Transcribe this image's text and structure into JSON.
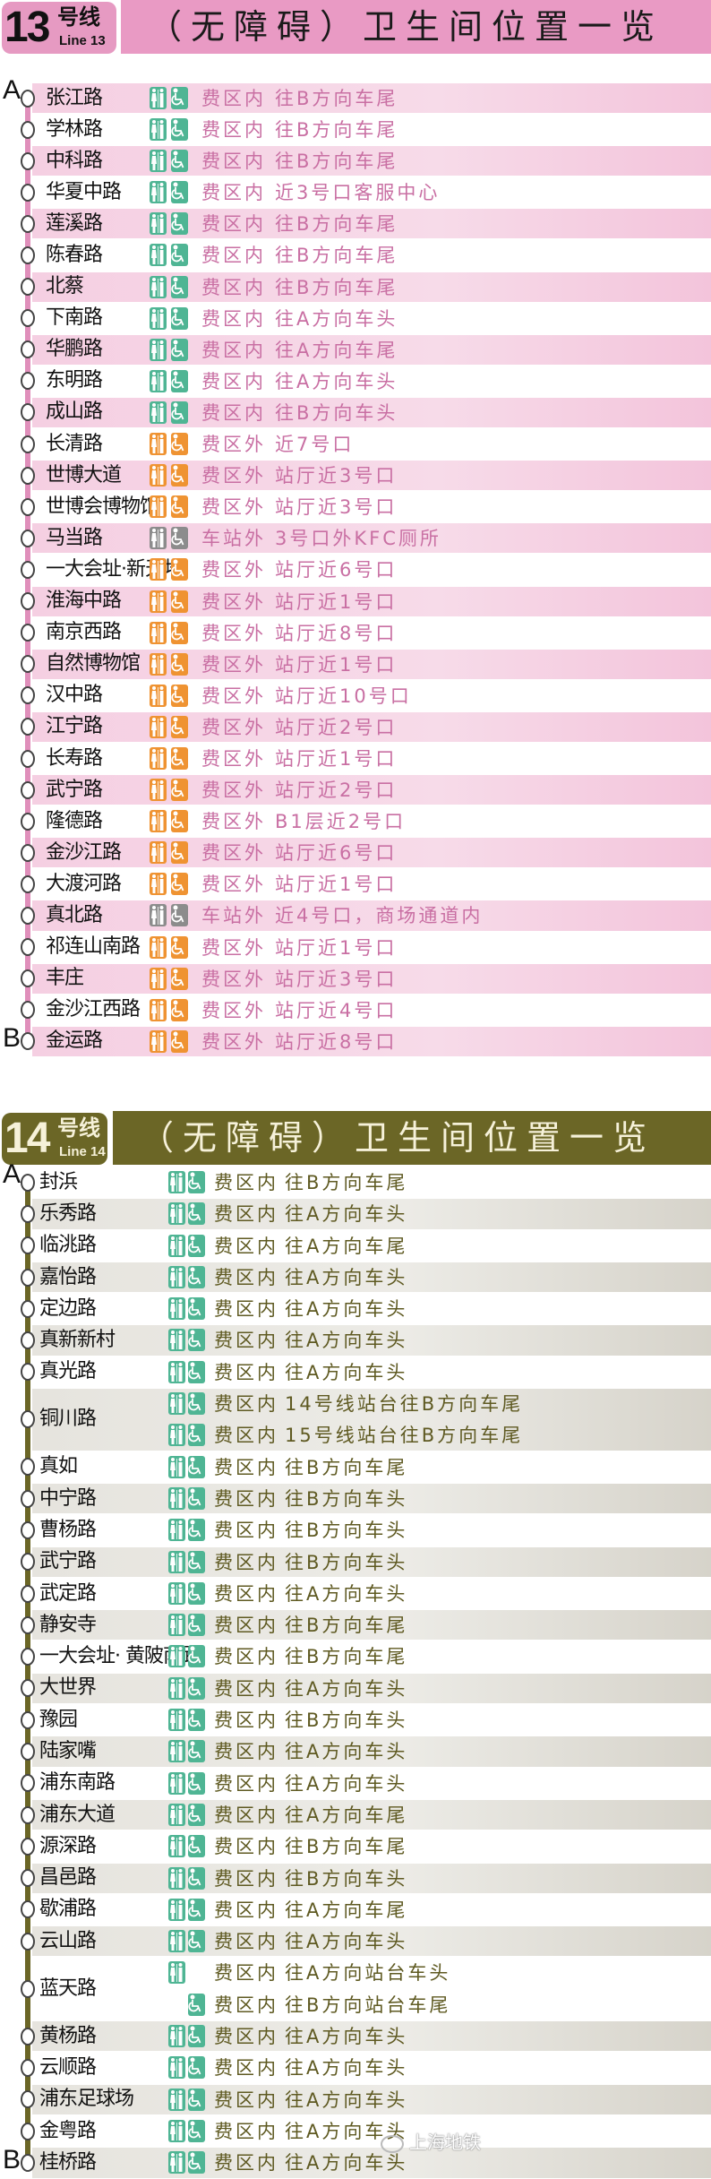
{
  "colors": {
    "in": "#4fb594",
    "out": "#ef9332",
    "station": "#8c8c8c"
  },
  "lines": [
    {
      "number": "13",
      "suffix": "号线",
      "en": "Line 13",
      "title": "（无障碍）卫生间位置一览",
      "start": "A",
      "end": "B",
      "line_color": "#e08fbb",
      "title_color": "#e99ac4",
      "title_text_color": "#1a1a1a",
      "text_color": "#c96fa3",
      "row_color": "#f4c8de",
      "stations": [
        {
          "name": "张江路",
          "entries": [
            {
              "status": "in",
              "zone": "费区内",
              "location": "往B方向车尾"
            }
          ]
        },
        {
          "name": "学林路",
          "entries": [
            {
              "status": "in",
              "zone": "费区内",
              "location": "往B方向车尾"
            }
          ]
        },
        {
          "name": "中科路",
          "entries": [
            {
              "status": "in",
              "zone": "费区内",
              "location": "往B方向车尾"
            }
          ]
        },
        {
          "name": "华夏中路",
          "entries": [
            {
              "status": "in",
              "zone": "费区内",
              "location": "近3号口客服中心"
            }
          ]
        },
        {
          "name": "莲溪路",
          "entries": [
            {
              "status": "in",
              "zone": "费区内",
              "location": "往B方向车尾"
            }
          ]
        },
        {
          "name": "陈春路",
          "entries": [
            {
              "status": "in",
              "zone": "费区内",
              "location": "往B方向车尾"
            }
          ]
        },
        {
          "name": "北蔡",
          "entries": [
            {
              "status": "in",
              "zone": "费区内",
              "location": "往B方向车尾"
            }
          ]
        },
        {
          "name": "下南路",
          "entries": [
            {
              "status": "in",
              "zone": "费区内",
              "location": "往A方向车头"
            }
          ]
        },
        {
          "name": "华鹏路",
          "entries": [
            {
              "status": "in",
              "zone": "费区内",
              "location": "往A方向车尾"
            }
          ]
        },
        {
          "name": "东明路",
          "entries": [
            {
              "status": "in",
              "zone": "费区内",
              "location": "往A方向车头"
            }
          ]
        },
        {
          "name": "成山路",
          "entries": [
            {
              "status": "in",
              "zone": "费区内",
              "location": "往B方向车头"
            }
          ]
        },
        {
          "name": "长清路",
          "entries": [
            {
              "status": "out",
              "zone": "费区外",
              "location": "近7号口"
            }
          ]
        },
        {
          "name": "世博大道",
          "entries": [
            {
              "status": "out",
              "zone": "费区外",
              "location": "站厅近3号口"
            }
          ]
        },
        {
          "name": "世博会博物馆",
          "entries": [
            {
              "status": "out",
              "zone": "费区外",
              "location": "站厅近3号口"
            }
          ]
        },
        {
          "name": "马当路",
          "entries": [
            {
              "status": "station",
              "zone": "车站外",
              "location": "3号口外KFC厕所"
            }
          ]
        },
        {
          "name": "一大会址·新天地",
          "entries": [
            {
              "status": "out",
              "zone": "费区外",
              "location": "站厅近6号口"
            }
          ]
        },
        {
          "name": "淮海中路",
          "entries": [
            {
              "status": "out",
              "zone": "费区外",
              "location": "站厅近1号口"
            }
          ]
        },
        {
          "name": "南京西路",
          "entries": [
            {
              "status": "out",
              "zone": "费区外",
              "location": "站厅近8号口"
            }
          ]
        },
        {
          "name": "自然博物馆",
          "entries": [
            {
              "status": "out",
              "zone": "费区外",
              "location": "站厅近1号口"
            }
          ]
        },
        {
          "name": "汉中路",
          "entries": [
            {
              "status": "out",
              "zone": "费区外",
              "location": "站厅近10号口"
            }
          ]
        },
        {
          "name": "江宁路",
          "entries": [
            {
              "status": "out",
              "zone": "费区外",
              "location": "站厅近2号口"
            }
          ]
        },
        {
          "name": "长寿路",
          "entries": [
            {
              "status": "out",
              "zone": "费区外",
              "location": "站厅近1号口"
            }
          ]
        },
        {
          "name": "武宁路",
          "entries": [
            {
              "status": "out",
              "zone": "费区外",
              "location": "站厅近2号口"
            }
          ]
        },
        {
          "name": "隆德路",
          "entries": [
            {
              "status": "out",
              "zone": "费区外",
              "location": "B1层近2号口"
            }
          ]
        },
        {
          "name": "金沙江路",
          "entries": [
            {
              "status": "out",
              "zone": "费区外",
              "location": "站厅近6号口"
            }
          ]
        },
        {
          "name": "大渡河路",
          "entries": [
            {
              "status": "out",
              "zone": "费区外",
              "location": "站厅近1号口"
            }
          ]
        },
        {
          "name": "真北路",
          "entries": [
            {
              "status": "station",
              "zone": "车站外",
              "location": "近4号口，商场通道内"
            }
          ]
        },
        {
          "name": "祁连山南路",
          "entries": [
            {
              "status": "out",
              "zone": "费区外",
              "location": "站厅近1号口"
            }
          ]
        },
        {
          "name": "丰庄",
          "entries": [
            {
              "status": "out",
              "zone": "费区外",
              "location": "站厅近3号口"
            }
          ]
        },
        {
          "name": "金沙江西路",
          "entries": [
            {
              "status": "out",
              "zone": "费区外",
              "location": "站厅近4号口"
            }
          ]
        },
        {
          "name": "金运路",
          "entries": [
            {
              "status": "out",
              "zone": "费区外",
              "location": "站厅近8号口"
            }
          ]
        }
      ]
    },
    {
      "number": "14",
      "suffix": "号线",
      "en": "Line 14",
      "title": "（无障碍）卫生间位置一览",
      "start": "A",
      "end": "B",
      "line_color": "#6b6626",
      "title_color": "#6b6626",
      "title_text_color": "#f6f1d9",
      "text_color": "#5f5a22",
      "row_color": "#dcd9d0",
      "stations": [
        {
          "name": "封浜",
          "entries": [
            {
              "status": "in",
              "zone": "费区内",
              "location": "往B方向车尾"
            }
          ]
        },
        {
          "name": "乐秀路",
          "entries": [
            {
              "status": "in",
              "zone": "费区内",
              "location": "往A方向车头"
            }
          ]
        },
        {
          "name": "临洮路",
          "entries": [
            {
              "status": "in",
              "zone": "费区内",
              "location": "往A方向车尾"
            }
          ]
        },
        {
          "name": "嘉怡路",
          "entries": [
            {
              "status": "in",
              "zone": "费区内",
              "location": "往A方向车头"
            }
          ]
        },
        {
          "name": "定边路",
          "entries": [
            {
              "status": "in",
              "zone": "费区内",
              "location": "往A方向车头"
            }
          ]
        },
        {
          "name": "真新新村",
          "entries": [
            {
              "status": "in",
              "zone": "费区内",
              "location": "往A方向车头"
            }
          ]
        },
        {
          "name": "真光路",
          "entries": [
            {
              "status": "in",
              "zone": "费区内",
              "location": "往A方向车头"
            }
          ]
        },
        {
          "name": "铜川路",
          "entries": [
            {
              "status": "in",
              "zone": "费区内",
              "location": "14号线站台往B方向车尾"
            },
            {
              "status": "in",
              "zone": "费区内",
              "location": "15号线站台往B方向车尾"
            }
          ]
        },
        {
          "name": "真如",
          "entries": [
            {
              "status": "in",
              "zone": "费区内",
              "location": "往B方向车尾"
            }
          ]
        },
        {
          "name": "中宁路",
          "entries": [
            {
              "status": "in",
              "zone": "费区内",
              "location": "往B方向车头"
            }
          ]
        },
        {
          "name": "曹杨路",
          "entries": [
            {
              "status": "in",
              "zone": "费区内",
              "location": "往B方向车头"
            }
          ]
        },
        {
          "name": "武宁路",
          "entries": [
            {
              "status": "in",
              "zone": "费区内",
              "location": "往B方向车头"
            }
          ]
        },
        {
          "name": "武定路",
          "entries": [
            {
              "status": "in",
              "zone": "费区内",
              "location": "往A方向车头"
            }
          ]
        },
        {
          "name": "静安寺",
          "entries": [
            {
              "status": "in",
              "zone": "费区内",
              "location": "往B方向车尾"
            }
          ]
        },
        {
          "name": "一大会址· 黄陂南路",
          "entries": [
            {
              "status": "in",
              "zone": "费区内",
              "location": "往B方向车尾"
            }
          ]
        },
        {
          "name": "大世界",
          "entries": [
            {
              "status": "in",
              "zone": "费区内",
              "location": "往A方向车头"
            }
          ]
        },
        {
          "name": "豫园",
          "entries": [
            {
              "status": "in",
              "zone": "费区内",
              "location": "往B方向车头"
            }
          ]
        },
        {
          "name": "陆家嘴",
          "entries": [
            {
              "status": "in",
              "zone": "费区内",
              "location": "往A方向车头"
            }
          ]
        },
        {
          "name": "浦东南路",
          "entries": [
            {
              "status": "in",
              "zone": "费区内",
              "location": "往A方向车头"
            }
          ]
        },
        {
          "name": "浦东大道",
          "entries": [
            {
              "status": "in",
              "zone": "费区内",
              "location": "往A方向车尾"
            }
          ]
        },
        {
          "name": "源深路",
          "entries": [
            {
              "status": "in",
              "zone": "费区内",
              "location": "往B方向车尾"
            }
          ]
        },
        {
          "name": "昌邑路",
          "entries": [
            {
              "status": "in",
              "zone": "费区内",
              "location": "往B方向车头"
            }
          ]
        },
        {
          "name": "歇浦路",
          "entries": [
            {
              "status": "in",
              "zone": "费区内",
              "location": "往A方向车尾"
            }
          ]
        },
        {
          "name": "云山路",
          "entries": [
            {
              "status": "in",
              "zone": "费区内",
              "location": "往A方向车头"
            }
          ]
        },
        {
          "name": "蓝天路",
          "entries": [
            {
              "status": "in",
              "toilet_only": true,
              "zone": "费区内",
              "location": "往A方向站台车头"
            },
            {
              "status": "in",
              "accessible_only": true,
              "zone": "费区内",
              "location": "往B方向站台车尾"
            }
          ]
        },
        {
          "name": "黄杨路",
          "entries": [
            {
              "status": "in",
              "zone": "费区内",
              "location": "往A方向车头"
            }
          ]
        },
        {
          "name": "云顺路",
          "entries": [
            {
              "status": "in",
              "zone": "费区内",
              "location": "往A方向车头"
            }
          ]
        },
        {
          "name": "浦东足球场",
          "entries": [
            {
              "status": "in",
              "zone": "费区内",
              "location": "往A方向车头"
            }
          ]
        },
        {
          "name": "金粤路",
          "entries": [
            {
              "status": "in",
              "zone": "费区内",
              "location": "往A方向车头"
            }
          ]
        },
        {
          "name": "桂桥路",
          "entries": [
            {
              "status": "in",
              "zone": "费区内",
              "location": "往A方向车头"
            }
          ]
        }
      ]
    }
  ],
  "watermark": "上海地铁"
}
